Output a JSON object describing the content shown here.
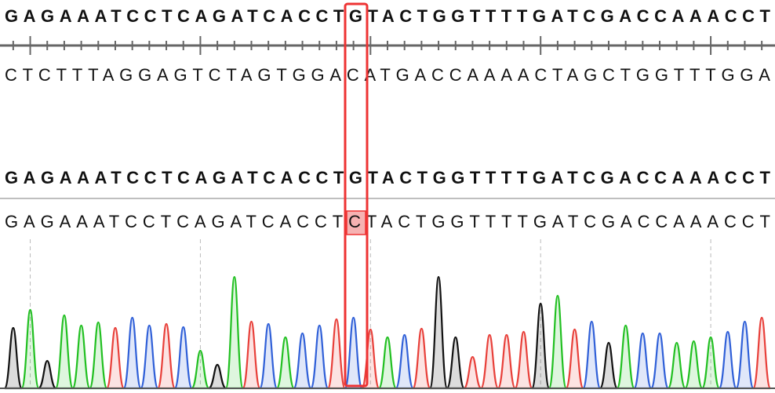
{
  "reference": "GAGAAATCCTCAGATCACCTGTACTGGTTTTGATCGACCAAACCT",
  "complement": "CTCTTTAGGAGTCTAGTGGACATGACCAAAACTAGCTGGTTTGGA",
  "aligned_reference": "GAGAAATCCTCAGATCACCTGTACTGGTTTTGATCGACCAAACCT",
  "sample": "GAGAAATCCTCAGATCACCTCTACTGGTTTTGATCGACCAAACCT",
  "chromatogram": {
    "ylim": [
      0,
      150
    ],
    "colors": {
      "A": "#22c022",
      "C": "#3060d8",
      "G": "#111111",
      "T": "#e8403a"
    },
    "peaks": [
      77,
      100,
      35,
      93,
      80,
      84,
      77,
      90,
      80,
      82,
      78,
      48,
      30,
      142,
      85,
      82,
      65,
      70,
      80,
      88,
      90,
      75,
      65,
      68,
      76,
      142,
      65,
      40,
      68,
      68,
      72,
      108,
      118,
      75,
      85,
      58,
      80,
      70,
      70,
      58,
      60,
      65,
      72,
      85,
      90
    ]
  }
}
